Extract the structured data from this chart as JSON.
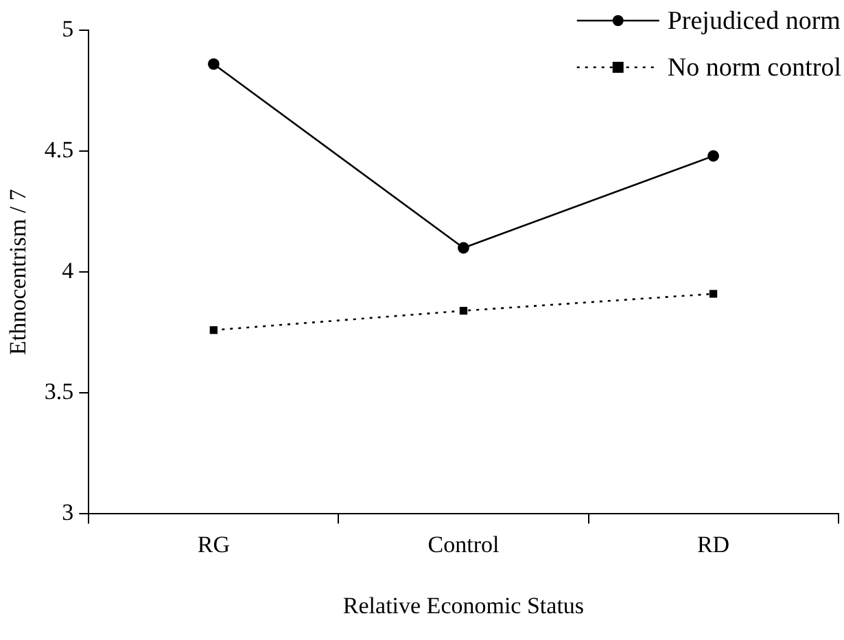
{
  "chart_data": {
    "type": "line",
    "xlabel": "Relative Economic Status",
    "ylabel": "Ethnocentrism / 7",
    "categories": [
      "RG",
      "Control",
      "RD"
    ],
    "series": [
      {
        "name": "Prejudiced norm",
        "color": "#000000",
        "values": [
          4.86,
          4.1,
          4.48
        ],
        "marker": "circle",
        "line_style": "solid"
      },
      {
        "name": "No norm control",
        "color": "#000000",
        "values": [
          3.76,
          3.84,
          3.91
        ],
        "marker": "square",
        "line_style": "dotted"
      }
    ],
    "ylim": [
      3,
      5
    ],
    "yticks": [
      3,
      3.5,
      4,
      4.5,
      5
    ],
    "grid": false,
    "legend": "top right"
  }
}
